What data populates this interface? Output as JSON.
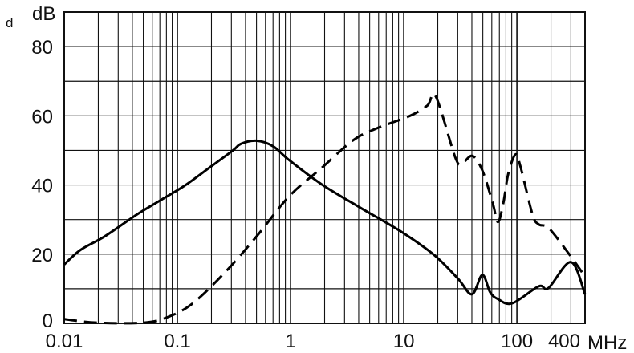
{
  "stray_mark": "d",
  "chart_data": {
    "type": "line",
    "title": "",
    "xlabel": "MHz",
    "ylabel": "dB",
    "x_scale": "log",
    "xlim": [
      0.01,
      400
    ],
    "ylim": [
      0,
      90
    ],
    "grid": true,
    "x_tick_labels": [
      "0.01",
      "0.1",
      "1",
      "10",
      "100",
      "400"
    ],
    "x_tick_values": [
      0.01,
      0.1,
      1,
      10,
      100,
      400
    ],
    "y_tick_labels": [
      "0",
      "20",
      "40",
      "60",
      "80"
    ],
    "y_tick_values": [
      0,
      20,
      40,
      60,
      80
    ],
    "series": [
      {
        "style": "solid",
        "color": "#000000",
        "x": [
          0.01,
          0.0139,
          0.0227,
          0.0436,
          0.0711,
          0.116,
          0.19,
          0.31,
          0.364,
          0.5,
          0.7,
          0.97,
          1.88,
          4.2,
          9.7,
          18.5,
          30,
          40,
          49.5,
          58,
          68,
          91,
          156,
          190,
          300,
          400
        ],
        "y": [
          17,
          21.2,
          25.1,
          31.4,
          35.6,
          39.8,
          44.9,
          50,
          51.9,
          52.8,
          51.2,
          47.2,
          40.2,
          33.3,
          26.3,
          19.8,
          13,
          8.4,
          14,
          9,
          7,
          5.8,
          10.7,
          10.2,
          17.7,
          8.4
        ]
      },
      {
        "style": "dashed",
        "color": "#000000",
        "x": [
          0.01,
          0.0192,
          0.0513,
          0.0837,
          0.137,
          0.263,
          0.5,
          0.97,
          1.88,
          3.6,
          5.9,
          11.4,
          16.2,
          19.2,
          28.6,
          32.8,
          40.5,
          49.5,
          61,
          68,
          76,
          84,
          97,
          107,
          137,
          156,
          193,
          300,
          400
        ],
        "y": [
          1.2,
          0.2,
          0.2,
          1.9,
          5.8,
          14.7,
          25.1,
          36.7,
          44.9,
          53,
          56.5,
          60,
          63,
          65.6,
          47.9,
          46.3,
          48.4,
          44.2,
          34.9,
          29.3,
          34.9,
          43.3,
          48.8,
          45.6,
          31.6,
          28.6,
          27.4,
          19.3,
          13.5
        ]
      }
    ]
  }
}
